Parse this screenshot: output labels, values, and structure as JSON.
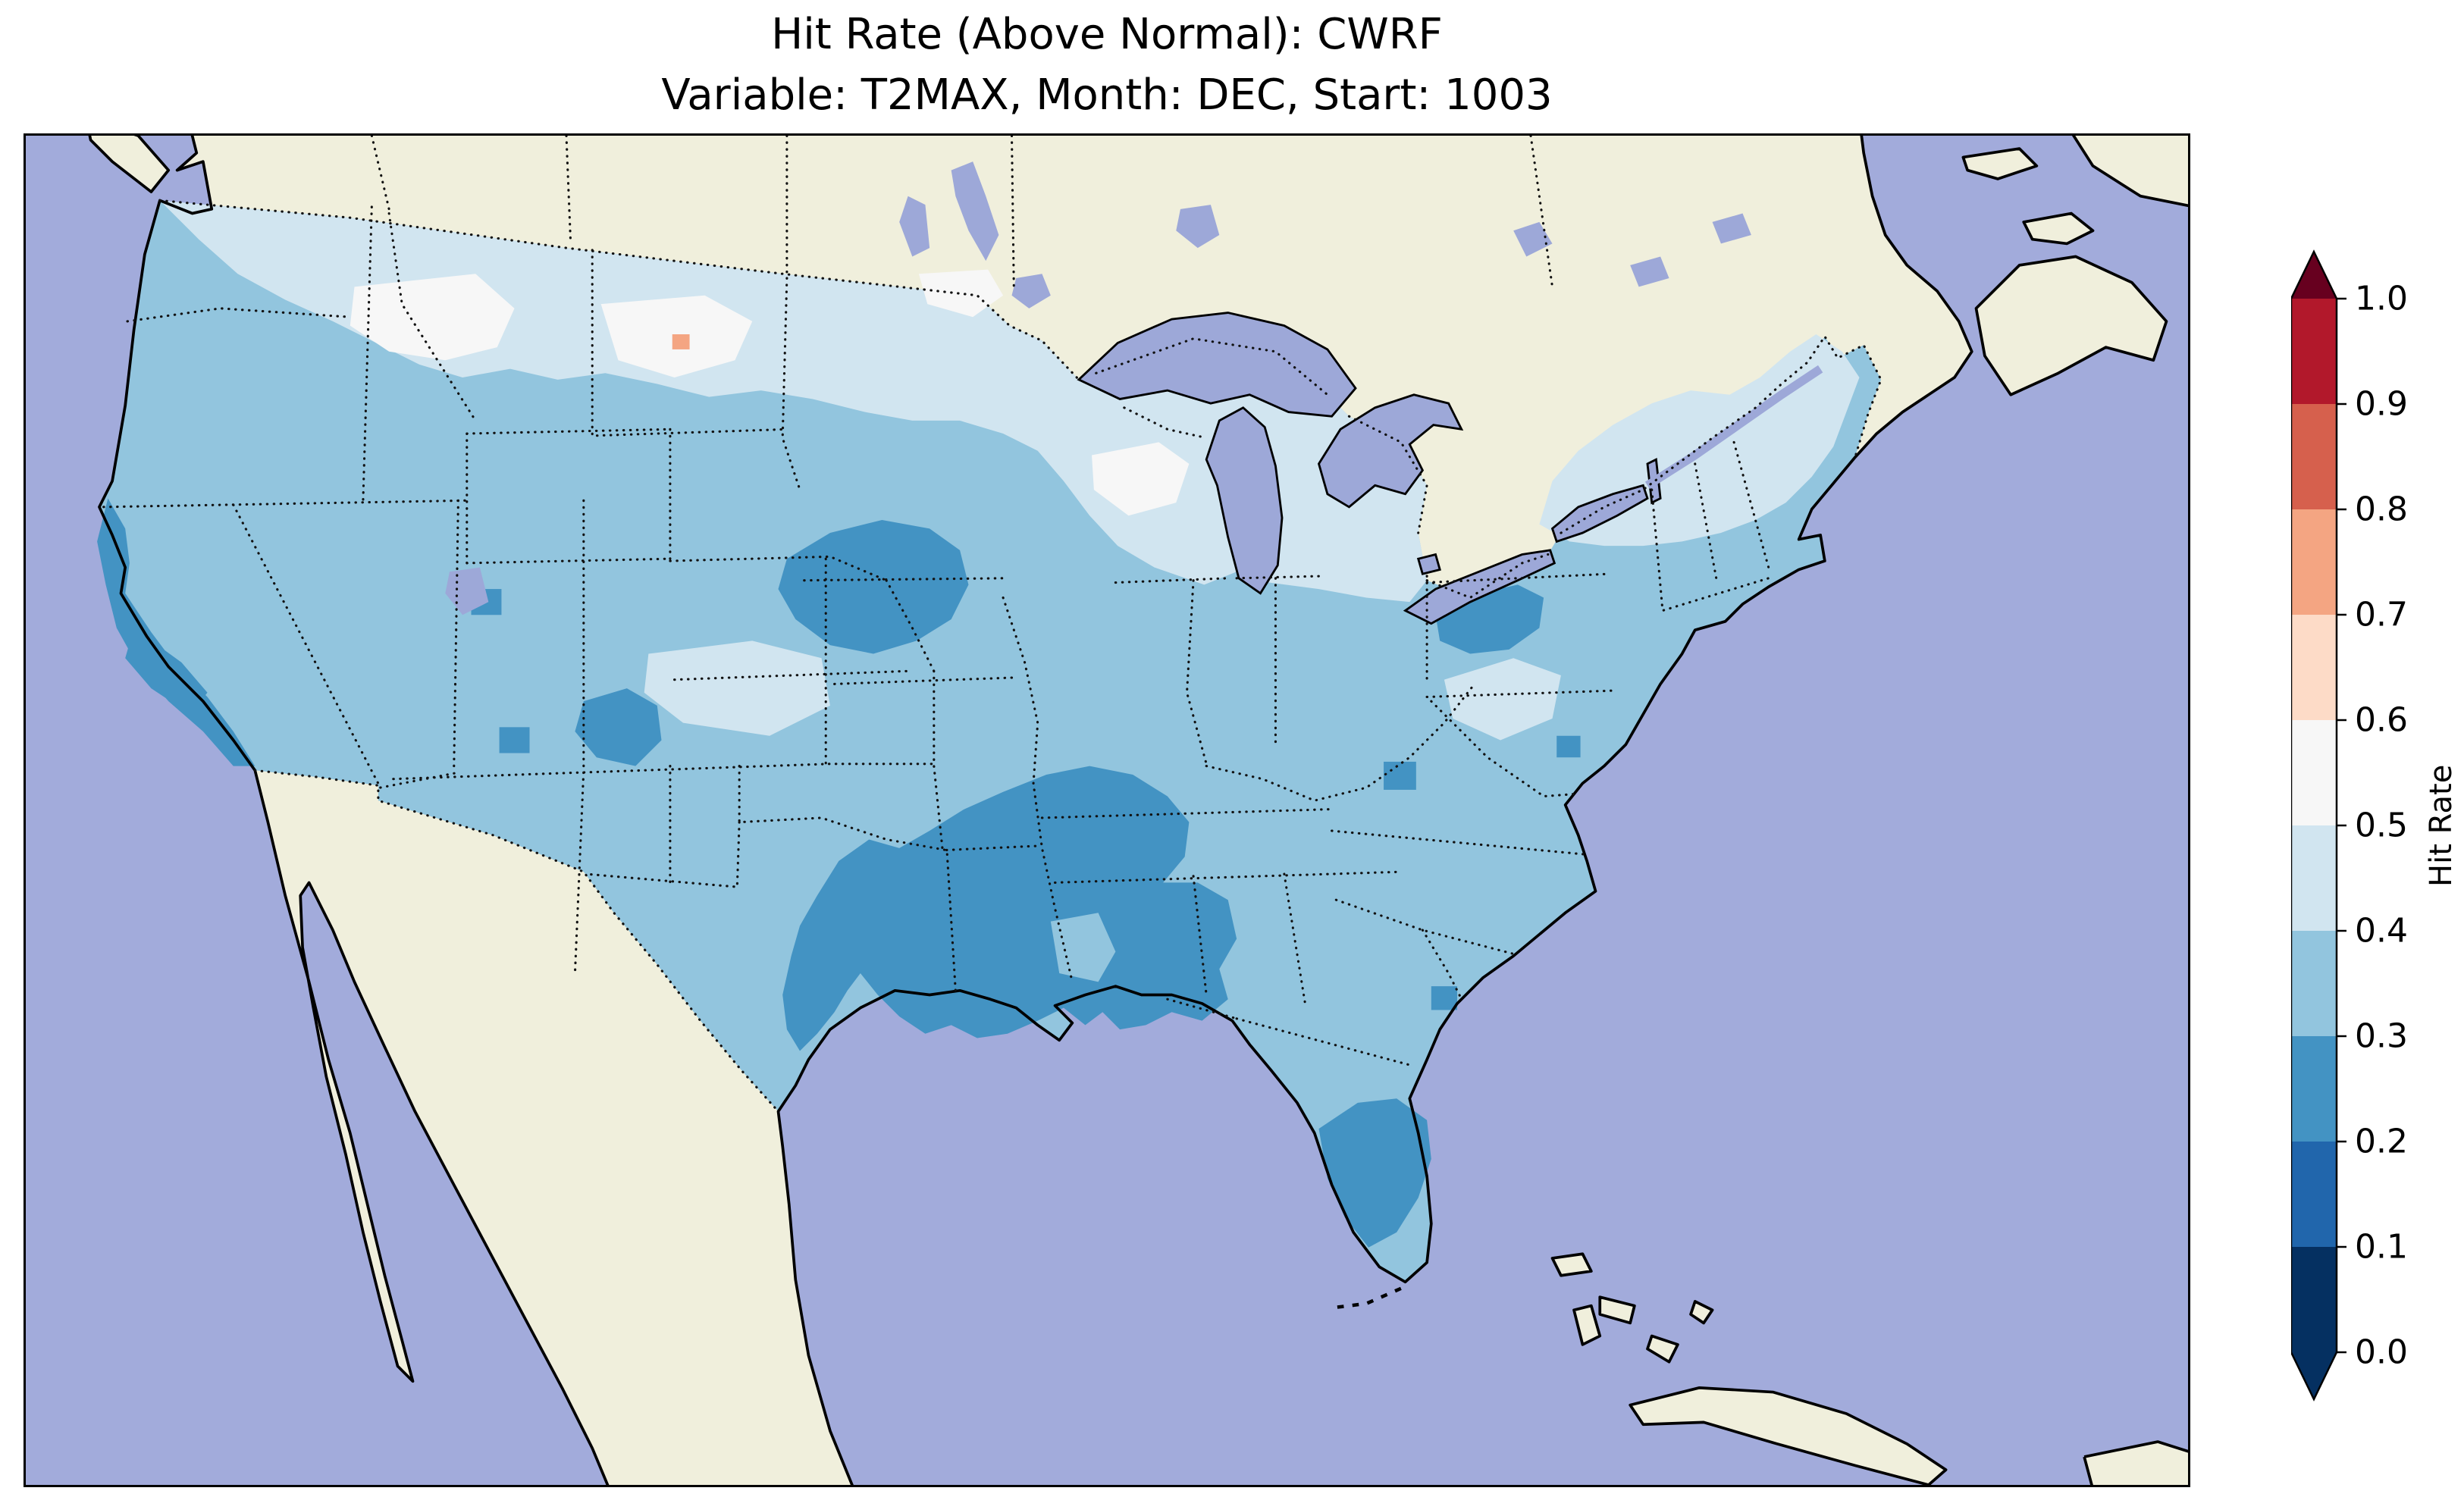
{
  "title": {
    "line1": "Hit Rate (Above Normal): CWRF",
    "line2": "Variable: T2MAX, Month: DEC, Start: 1003"
  },
  "colorbar": {
    "label": "Hit Rate",
    "ticks": [
      "1.0",
      "0.9",
      "0.8",
      "0.7",
      "0.6",
      "0.5",
      "0.4",
      "0.3",
      "0.2",
      "0.1",
      "0.0"
    ],
    "segments_top_to_bottom": [
      "#b2182b",
      "#d6604d",
      "#f4a582",
      "#fddbc7",
      "#f7f7f7",
      "#d1e5f0",
      "#92c5de",
      "#4393c3",
      "#2166ac",
      "#053061"
    ],
    "arrow_over": "#67001f",
    "arrow_under": "#053061"
  },
  "map_colors": {
    "ocean": "#a2abdb",
    "lake": "#9da8d8",
    "land": "#f0efdc",
    "coastline": "#000000",
    "border_dots": "#111111",
    "level_02_03": "#4393c3",
    "level_03_04": "#92c5de",
    "level_04_05": "#d1e5f0",
    "level_05_06": "#f7f7f7",
    "level_06_07": "#f4a582"
  },
  "chart_data": {
    "type": "heatmap",
    "title": "Hit Rate (Above Normal): CWRF",
    "subtitle": "Variable: T2MAX, Month: DEC, Start: 1003",
    "variable": "T2MAX",
    "month": "DEC",
    "start": "1003",
    "model": "CWRF",
    "colorbar_label": "Hit Rate",
    "levels": [
      0.0,
      0.1,
      0.2,
      0.3,
      0.4,
      0.5,
      0.6,
      0.7,
      0.8,
      0.9,
      1.0
    ],
    "colormap": "RdBu_r discrete, extended with arrows on both ends",
    "extent": "Continental United States (data masked to CONUS; Canada/Mexico shown as plain land, oceans blue)",
    "legend_position": "right vertical colorbar",
    "grid": "off",
    "regions": [
      {
        "region": "Washington / Pacific Northwest",
        "hit_rate": 0.45
      },
      {
        "region": "Oregon / Idaho / Great Basin interior",
        "hit_rate": 0.35
      },
      {
        "region": "California coastal strip",
        "hit_rate": 0.25
      },
      {
        "region": "Montana (most)",
        "hit_rate": 0.45
      },
      {
        "region": "Northwest Montana patch",
        "hit_rate": 0.55
      },
      {
        "region": "North Dakota patch",
        "hit_rate": 0.55
      },
      {
        "region": "North Dakota single cell",
        "hit_rate": 0.65
      },
      {
        "region": "Minnesota / Wisconsin / Michigan",
        "hit_rate": 0.45
      },
      {
        "region": "Nebraska / South Dakota blob",
        "hit_rate": 0.25
      },
      {
        "region": "Eastern Colorado / Western Kansas",
        "hit_rate": 0.45
      },
      {
        "region": "Central & South Texas",
        "hit_rate": 0.25
      },
      {
        "region": "Oklahoma / Arkansas / Louisiana / Mississippi",
        "hit_rate": 0.25
      },
      {
        "region": "Northeast Louisiana notch",
        "hit_rate": 0.35
      },
      {
        "region": "Southeast (Georgia, Carolinas, Tennessee)",
        "hit_rate": 0.35
      },
      {
        "region": "Central Florida",
        "hit_rate": 0.25
      },
      {
        "region": "Ohio Valley / Mid-Atlantic",
        "hit_rate": 0.35
      },
      {
        "region": "Western Pennsylvania blob",
        "hit_rate": 0.25
      },
      {
        "region": "Kentucky/Ohio small cell",
        "hit_rate": 0.25
      },
      {
        "region": "New York / northern New England",
        "hit_rate": 0.45
      },
      {
        "region": "Utah patch",
        "hit_rate": 0.25
      },
      {
        "region": "Arizona small cell",
        "hit_rate": 0.25
      }
    ],
    "notes": "Hit-rate values are the midpoints of the discrete colorbar bins read from the map colors."
  }
}
